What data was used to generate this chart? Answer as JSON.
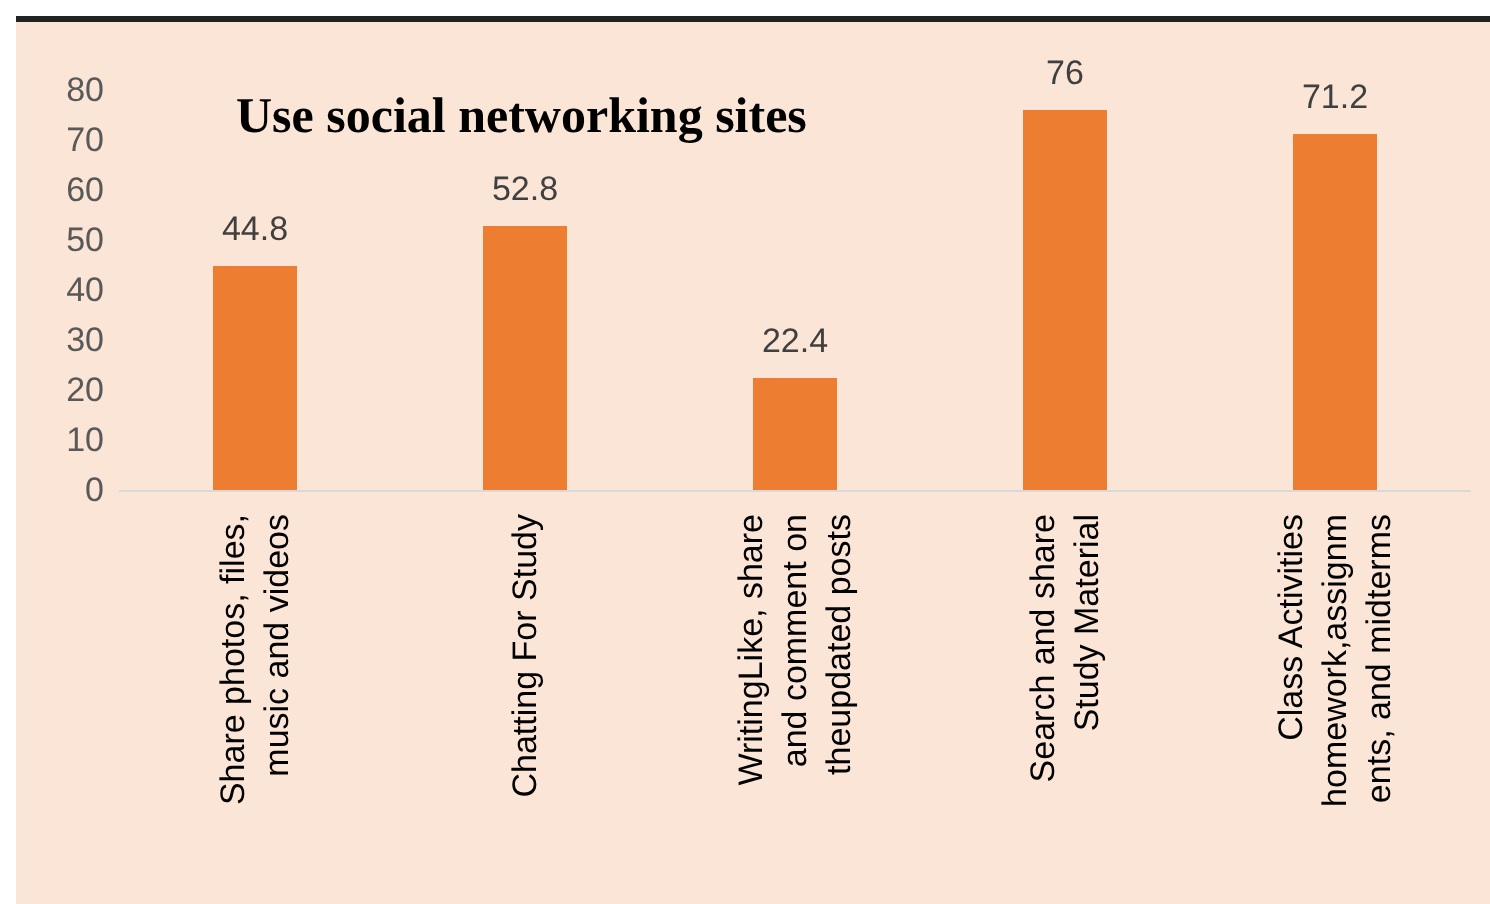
{
  "chart_data": {
    "type": "bar",
    "title": "Use social networking sites",
    "categories": [
      "Share photos, files,\nmusic and videos",
      "Chatting For Study",
      "WritingLike, share\nand comment on\ntheupdated posts",
      "Search and share\nStudy Material",
      "Class Activities\nhomework,assignm\nents, and midterms"
    ],
    "values": [
      44.8,
      52.8,
      22.4,
      76,
      71.2
    ],
    "color": "#ed7d31",
    "ylim": [
      0,
      80
    ],
    "yticks": [
      0,
      10,
      20,
      30,
      40,
      50,
      60,
      70,
      80
    ],
    "grid": false,
    "data_labels": true
  }
}
